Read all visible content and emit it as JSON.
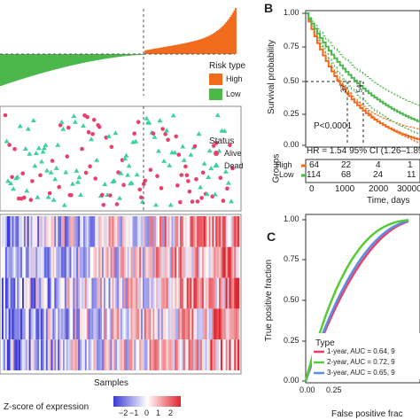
{
  "panels": {
    "b_label": "B",
    "c_label": "C"
  },
  "risk_plot": {
    "legend_title": "Risk type",
    "legend_items": [
      "High",
      "Low"
    ],
    "colors": {
      "high": "#f26b1d",
      "low": "#4cb84c"
    }
  },
  "status_plot": {
    "legend_title": "Status",
    "legend_items": [
      "Alive",
      "Dead"
    ],
    "colors": {
      "alive": "#e8406a",
      "dead": "#3fcfa4"
    }
  },
  "heatmap": {
    "xlabel": "Samples",
    "scale_label": "Z-score of expression",
    "scale_ticks": [
      "−2",
      "−1",
      "0",
      "1",
      "2"
    ],
    "colors": {
      "low": "#3b3bd6",
      "mid": "#ffffff",
      "high": "#e0242e"
    }
  },
  "survival": {
    "ylabel": "Survival probability",
    "yticks": [
      "1.00",
      "0.75",
      "0.50",
      "0.25",
      "0.00"
    ],
    "pvalue": "P<0.0001",
    "hr": "HR = 1.54 95% CI (1.26–1.89",
    "groups_label": "Groups",
    "risk_table": {
      "rows": [
        {
          "group": "High",
          "counts": [
            "64",
            "22",
            "4",
            "1"
          ]
        },
        {
          "group": "Low",
          "counts": [
            "114",
            "68",
            "24",
            "11"
          ]
        }
      ],
      "xticks": [
        "0",
        "1000",
        "2000",
        "30000"
      ]
    },
    "xlabel": "Time, days",
    "median_labels": [
      "37",
      "54"
    ],
    "colors": {
      "high": "#f26b1d",
      "low": "#4cb84c"
    }
  },
  "roc": {
    "ylabel": "True positive fraction",
    "xlabel": "False positive frac",
    "yticks": [
      "1.00",
      "0.75",
      "0.50",
      "0.25",
      "0.00"
    ],
    "xticks": [
      "0.00",
      "0.25"
    ],
    "legend_title": "Type",
    "legend_items": [
      {
        "label": "1-year, AUC = 0.64, 9",
        "color": "#e8406a"
      },
      {
        "label": "2-year, AUC = 0.72, 9",
        "color": "#55cc33"
      },
      {
        "label": "3-year, AUC = 0.65, 9",
        "color": "#5b8fe0"
      }
    ]
  }
}
